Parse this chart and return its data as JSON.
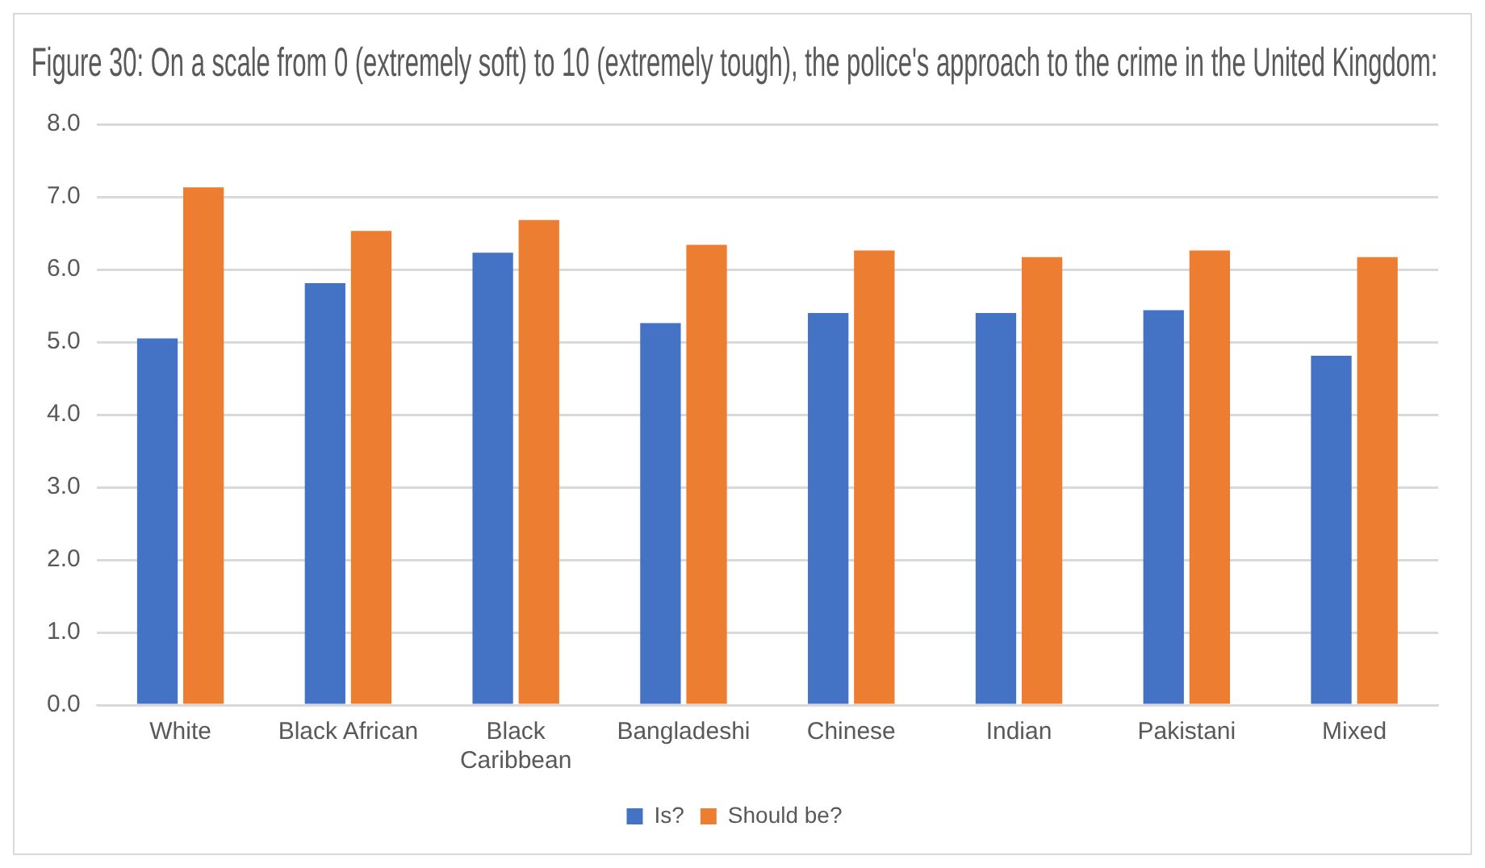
{
  "chart_data": {
    "type": "bar",
    "title": "Figure 30: On a scale from 0 (extremely soft) to 10 (extremely tough), the police's approach to the crime in the United Kingdom:",
    "categories": [
      "White",
      "Black African",
      "Black Caribbean",
      "Bangladeshi",
      "Chinese",
      "Indian",
      "Pakistani",
      "Mixed"
    ],
    "series": [
      {
        "name": "Is?",
        "color": "#4472c4",
        "values": [
          5.05,
          5.81,
          6.23,
          5.26,
          5.4,
          5.4,
          5.44,
          4.81
        ]
      },
      {
        "name": "Should be?",
        "color": "#ed7d31",
        "values": [
          7.13,
          6.53,
          6.68,
          6.34,
          6.26,
          6.17,
          6.26,
          6.17
        ]
      }
    ],
    "ylim": [
      0,
      8
    ],
    "yticks": [
      {
        "value": 0,
        "label": "0.0"
      },
      {
        "value": 1,
        "label": "1.0"
      },
      {
        "value": 2,
        "label": "2.0"
      },
      {
        "value": 3,
        "label": "3.0"
      },
      {
        "value": 4,
        "label": "4.0"
      },
      {
        "value": 5,
        "label": "5.0"
      },
      {
        "value": 6,
        "label": "6.0"
      },
      {
        "value": 7,
        "label": "7.0"
      },
      {
        "value": 8,
        "label": "8.0"
      }
    ],
    "grid": "y",
    "legend": "bottom"
  }
}
